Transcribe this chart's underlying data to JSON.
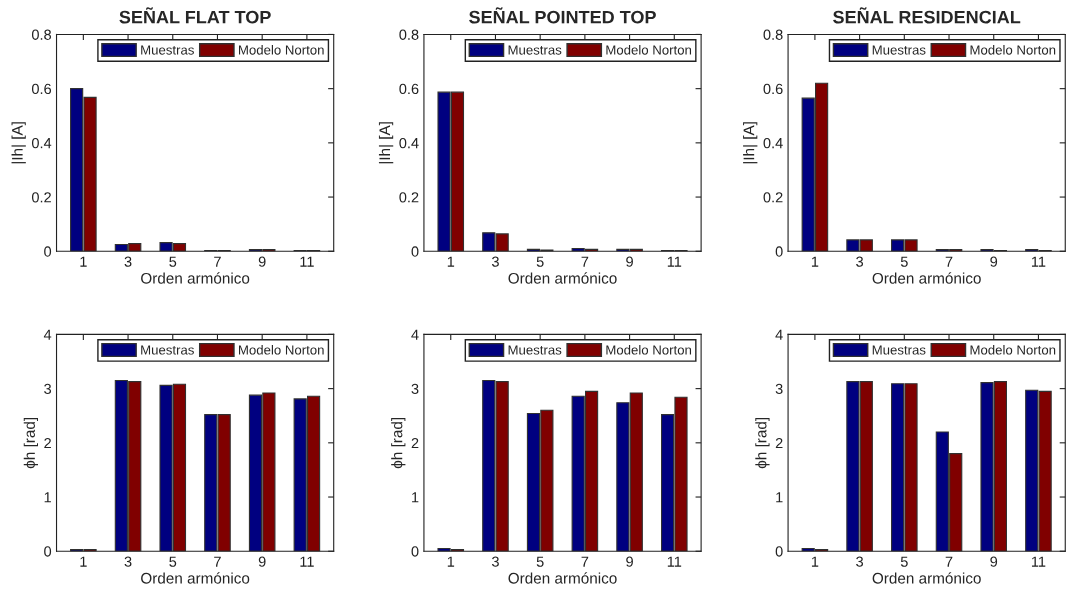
{
  "chart_data": [
    {
      "type": "bar",
      "title": "SEÑAL FLAT TOP",
      "xlabel": "Orden armónico",
      "ylabel": "|Ih| [A]",
      "categories": [
        "1",
        "3",
        "5",
        "7",
        "9",
        "11"
      ],
      "ylim": [
        0,
        0.8
      ],
      "yticks": [
        0,
        0.2,
        0.4,
        0.6,
        0.8
      ],
      "legend": "top right",
      "grid": false,
      "series": [
        {
          "name": "Muestras",
          "color": "#000080",
          "values": [
            0.6,
            0.025,
            0.032,
            0.003,
            0.006,
            0.003
          ]
        },
        {
          "name": "Modelo Norton",
          "color": "#800000",
          "values": [
            0.568,
            0.028,
            0.028,
            0.003,
            0.006,
            0.003
          ]
        }
      ]
    },
    {
      "type": "bar",
      "title": "SEÑAL POINTED TOP",
      "xlabel": "Orden armónico",
      "ylabel": "|Ih| [A]",
      "categories": [
        "1",
        "3",
        "5",
        "7",
        "9",
        "11"
      ],
      "ylim": [
        0,
        0.8
      ],
      "yticks": [
        0,
        0.2,
        0.4,
        0.6,
        0.8
      ],
      "legend": "top right",
      "grid": false,
      "series": [
        {
          "name": "Muestras",
          "color": "#000080",
          "values": [
            0.587,
            0.068,
            0.007,
            0.01,
            0.007,
            0.003
          ]
        },
        {
          "name": "Modelo Norton",
          "color": "#800000",
          "values": [
            0.587,
            0.064,
            0.004,
            0.007,
            0.007,
            0.003
          ]
        }
      ]
    },
    {
      "type": "bar",
      "title": "SEÑAL RESIDENCIAL",
      "xlabel": "Orden armónico",
      "ylabel": "|Ih| [A]",
      "categories": [
        "1",
        "3",
        "5",
        "7",
        "9",
        "11"
      ],
      "ylim": [
        0,
        0.8
      ],
      "yticks": [
        0,
        0.2,
        0.4,
        0.6,
        0.8
      ],
      "legend": "top right",
      "grid": false,
      "series": [
        {
          "name": "Muestras",
          "color": "#000080",
          "values": [
            0.565,
            0.042,
            0.042,
            0.006,
            0.006,
            0.006
          ]
        },
        {
          "name": "Modelo Norton",
          "color": "#800000",
          "values": [
            0.62,
            0.042,
            0.042,
            0.006,
            0.003,
            0.003
          ]
        }
      ]
    },
    {
      "type": "bar",
      "xlabel": "Orden armónico",
      "ylabel": "ϕh [rad]",
      "categories": [
        "1",
        "3",
        "5",
        "7",
        "9",
        "11"
      ],
      "ylim": [
        0,
        4
      ],
      "yticks": [
        0,
        1,
        2,
        3,
        4
      ],
      "legend": "top right",
      "grid": false,
      "series": [
        {
          "name": "Muestras",
          "color": "#000080",
          "values": [
            0.03,
            3.15,
            3.06,
            2.52,
            2.88,
            2.81
          ]
        },
        {
          "name": "Modelo Norton",
          "color": "#800000",
          "values": [
            0.03,
            3.13,
            3.08,
            2.52,
            2.92,
            2.86
          ]
        }
      ]
    },
    {
      "type": "bar",
      "xlabel": "Orden armónico",
      "ylabel": "ϕh [rad]",
      "categories": [
        "1",
        "3",
        "5",
        "7",
        "9",
        "11"
      ],
      "ylim": [
        0,
        4
      ],
      "yticks": [
        0,
        1,
        2,
        3,
        4
      ],
      "legend": "top right",
      "grid": false,
      "series": [
        {
          "name": "Muestras",
          "color": "#000080",
          "values": [
            0.05,
            3.15,
            2.54,
            2.86,
            2.74,
            2.52
          ]
        },
        {
          "name": "Modelo Norton",
          "color": "#800000",
          "values": [
            0.03,
            3.13,
            2.6,
            2.95,
            2.92,
            2.84
          ]
        }
      ]
    },
    {
      "type": "bar",
      "xlabel": "Orden armónico",
      "ylabel": "ϕh [rad]",
      "categories": [
        "1",
        "3",
        "5",
        "7",
        "9",
        "11"
      ],
      "ylim": [
        0,
        4
      ],
      "yticks": [
        0,
        1,
        2,
        3,
        4
      ],
      "legend": "top right",
      "grid": false,
      "series": [
        {
          "name": "Muestras",
          "color": "#000080",
          "values": [
            0.05,
            3.13,
            3.09,
            2.2,
            3.11,
            2.97
          ]
        },
        {
          "name": "Modelo Norton",
          "color": "#800000",
          "values": [
            0.03,
            3.13,
            3.09,
            1.8,
            3.13,
            2.95
          ]
        }
      ]
    }
  ]
}
